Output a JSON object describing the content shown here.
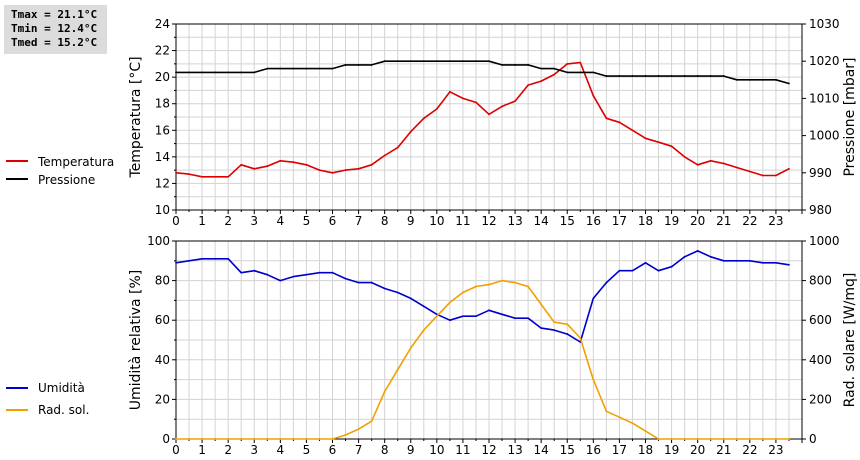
{
  "stats": {
    "tmax": "Tmax = 21.1°C",
    "tmin": "Tmin = 12.4°C",
    "tmed": "Tmed = 15.2°C"
  },
  "colors": {
    "temperature": "#dd0000",
    "pressure": "#000000",
    "humidity": "#0000cc",
    "radiation": "#f2a000",
    "grid": "#d3d3d3"
  },
  "chart_data": [
    {
      "type": "line",
      "x_ticks": [
        "0",
        "1",
        "2",
        "3",
        "4",
        "5",
        "6",
        "7",
        "8",
        "9",
        "10",
        "11",
        "12",
        "13",
        "14",
        "15",
        "16",
        "17",
        "18",
        "19",
        "20",
        "21",
        "22",
        "23"
      ],
      "xlim": [
        0,
        24
      ],
      "ylabel_left": "Temperatura [°C]",
      "ylabel_right": "Pressione [mbar]",
      "ylim_left": [
        10,
        24
      ],
      "yticks_left": [
        "10",
        "12",
        "14",
        "16",
        "18",
        "20",
        "22",
        "24"
      ],
      "ylim_right": [
        980,
        1030
      ],
      "yticks_right": [
        "980",
        "990",
        "1000",
        "1010",
        "1020",
        "1030"
      ],
      "grid": true,
      "legend_position": "left",
      "series": [
        {
          "name": "Temperatura",
          "axis": "left",
          "x": [
            0,
            0.5,
            1,
            1.5,
            2,
            2.5,
            3,
            3.5,
            4,
            4.5,
            5,
            5.5,
            6,
            6.5,
            7,
            7.5,
            8,
            8.5,
            9,
            9.5,
            10,
            10.5,
            11,
            11.5,
            12,
            12.5,
            13,
            13.5,
            14,
            14.5,
            15,
            15.5,
            16,
            16.5,
            17,
            17.5,
            18,
            18.5,
            19,
            19.5,
            20,
            20.5,
            21,
            21.5,
            22,
            22.5,
            23,
            23.5
          ],
          "y": [
            12.8,
            12.7,
            12.5,
            12.5,
            12.5,
            13.4,
            13.1,
            13.3,
            13.7,
            13.6,
            13.4,
            13.0,
            12.8,
            13.0,
            13.1,
            13.4,
            14.1,
            14.7,
            15.9,
            16.9,
            17.6,
            18.9,
            18.4,
            18.1,
            17.2,
            17.8,
            18.2,
            19.4,
            19.7,
            20.2,
            21.0,
            21.1,
            18.6,
            16.9,
            16.6,
            16.0,
            15.4,
            15.1,
            14.8,
            14.0,
            13.4,
            13.7,
            13.5,
            13.2,
            12.9,
            12.6,
            12.6,
            13.1
          ]
        },
        {
          "name": "Pressione",
          "axis": "right",
          "x": [
            0,
            0.5,
            1,
            1.5,
            2,
            2.5,
            3,
            3.5,
            4,
            4.5,
            5,
            5.5,
            6,
            6.5,
            7,
            7.5,
            8,
            8.5,
            9,
            9.5,
            10,
            10.5,
            11,
            11.5,
            12,
            12.5,
            13,
            13.5,
            14,
            14.5,
            15,
            15.5,
            16,
            16.5,
            17,
            17.5,
            18,
            18.5,
            19,
            19.5,
            20,
            20.5,
            21,
            21.5,
            22,
            22.5,
            23,
            23.5
          ],
          "y": [
            1017,
            1017,
            1017,
            1017,
            1017,
            1017,
            1017,
            1018,
            1018,
            1018,
            1018,
            1018,
            1018,
            1019,
            1019,
            1019,
            1020,
            1020,
            1020,
            1020,
            1020,
            1020,
            1020,
            1020,
            1020,
            1019,
            1019,
            1019,
            1018,
            1018,
            1017,
            1017,
            1017,
            1016,
            1016,
            1016,
            1016,
            1016,
            1016,
            1016,
            1016,
            1016,
            1016,
            1015,
            1015,
            1015,
            1015,
            1014
          ]
        }
      ]
    },
    {
      "type": "line",
      "x_ticks": [
        "0",
        "1",
        "2",
        "3",
        "4",
        "5",
        "6",
        "7",
        "8",
        "9",
        "10",
        "11",
        "12",
        "13",
        "14",
        "15",
        "16",
        "17",
        "18",
        "19",
        "20",
        "21",
        "22",
        "23"
      ],
      "xlim": [
        0,
        24
      ],
      "ylabel_left": "Umidità relativa [%]",
      "ylabel_right": "Rad. solare [W/mq]",
      "ylim_left": [
        0,
        100
      ],
      "yticks_left": [
        "0",
        "20",
        "40",
        "60",
        "80",
        "100"
      ],
      "ylim_right": [
        0,
        1000
      ],
      "yticks_right": [
        "0",
        "200",
        "400",
        "600",
        "800",
        "1000"
      ],
      "grid": true,
      "legend_position": "left",
      "series": [
        {
          "name": "Umidità",
          "axis": "left",
          "x": [
            0,
            0.5,
            1,
            1.5,
            2,
            2.5,
            3,
            3.5,
            4,
            4.5,
            5,
            5.5,
            6,
            6.5,
            7,
            7.5,
            8,
            8.5,
            9,
            9.5,
            10,
            10.5,
            11,
            11.5,
            12,
            12.5,
            13,
            13.5,
            14,
            14.5,
            15,
            15.5,
            16,
            16.5,
            17,
            17.5,
            18,
            18.5,
            19,
            19.5,
            20,
            20.5,
            21,
            21.5,
            22,
            22.5,
            23,
            23.5
          ],
          "y": [
            89,
            90,
            91,
            91,
            91,
            84,
            85,
            83,
            80,
            82,
            83,
            84,
            84,
            81,
            79,
            79,
            76,
            74,
            71,
            67,
            63,
            60,
            62,
            62,
            65,
            63,
            61,
            61,
            56,
            55,
            53,
            49,
            71,
            79,
            85,
            85,
            89,
            85,
            87,
            92,
            95,
            92,
            90,
            90,
            90,
            89,
            89,
            88
          ]
        },
        {
          "name": "Rad. sol.",
          "axis": "right",
          "x": [
            0,
            0.5,
            1,
            1.5,
            2,
            2.5,
            3,
            3.5,
            4,
            4.5,
            5,
            5.5,
            6,
            6.5,
            7,
            7.5,
            8,
            8.5,
            9,
            9.5,
            10,
            10.5,
            11,
            11.5,
            12,
            12.5,
            13,
            13.5,
            14,
            14.5,
            15,
            15.5,
            16,
            16.5,
            17,
            17.5,
            18,
            18.5,
            19,
            19.5,
            20,
            20.5,
            21,
            21.5,
            22,
            22.5,
            23,
            23.5
          ],
          "y": [
            0,
            0,
            0,
            0,
            0,
            0,
            0,
            0,
            0,
            0,
            0,
            0,
            0,
            20,
            50,
            90,
            240,
            350,
            460,
            550,
            620,
            690,
            740,
            770,
            780,
            800,
            790,
            770,
            680,
            590,
            580,
            510,
            300,
            140,
            110,
            80,
            40,
            0,
            0,
            0,
            0,
            0,
            0,
            0,
            0,
            0,
            0,
            0
          ]
        }
      ]
    }
  ]
}
